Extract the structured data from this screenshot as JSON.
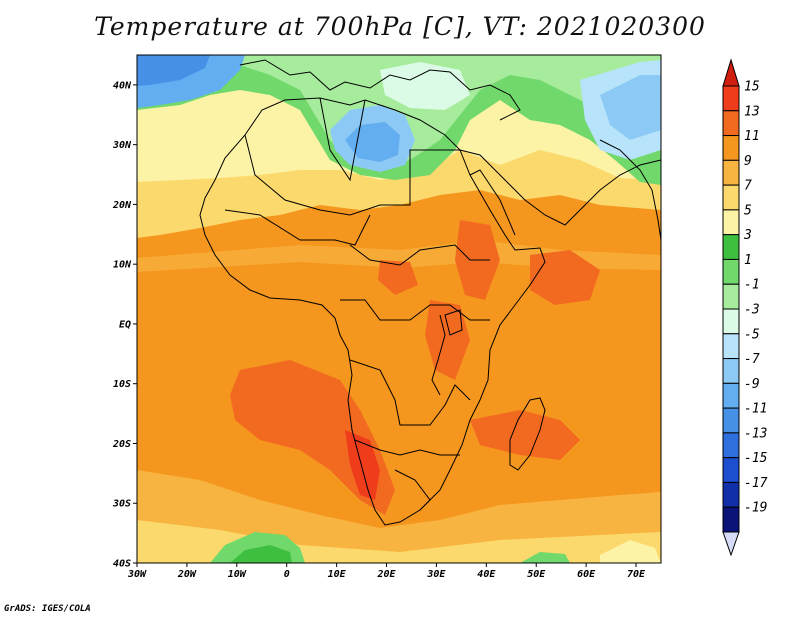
{
  "title": "Temperature at 700hPa [C], VT: 2021020300",
  "credit": "GrADS: IGES/COLA",
  "lat_labels": [
    "40N",
    "30N",
    "20N",
    "10N",
    "EQ",
    "10S",
    "20S",
    "30S",
    "40S"
  ],
  "lon_labels": [
    "30W",
    "20W",
    "10W",
    "0",
    "10E",
    "20E",
    "30E",
    "40E",
    "50E",
    "60E",
    "70E"
  ],
  "colorbar": {
    "labels": [
      "15",
      "13",
      "11",
      "9",
      "7",
      "5",
      "3",
      "1",
      "-1",
      "-3",
      "-5",
      "-7",
      "-9",
      "-11",
      "-13",
      "-15",
      "-17",
      "-19"
    ],
    "colors": [
      "#d01e10",
      "#ef3d1c",
      "#f26a20",
      "#f5961e",
      "#f8b440",
      "#fbd96c",
      "#fcf3a6",
      "#3fbf3f",
      "#71d86b",
      "#a6ec9c",
      "#dcfbe6",
      "#b8e4fb",
      "#8ccaf5",
      "#63aef0",
      "#4690e6",
      "#2f6fdd",
      "#1b4fcf",
      "#102fa8",
      "#0a1478",
      "#d6dcf7"
    ]
  },
  "map": {
    "lon_range": [
      -30,
      75
    ],
    "lat_range": [
      -40,
      45
    ]
  }
}
